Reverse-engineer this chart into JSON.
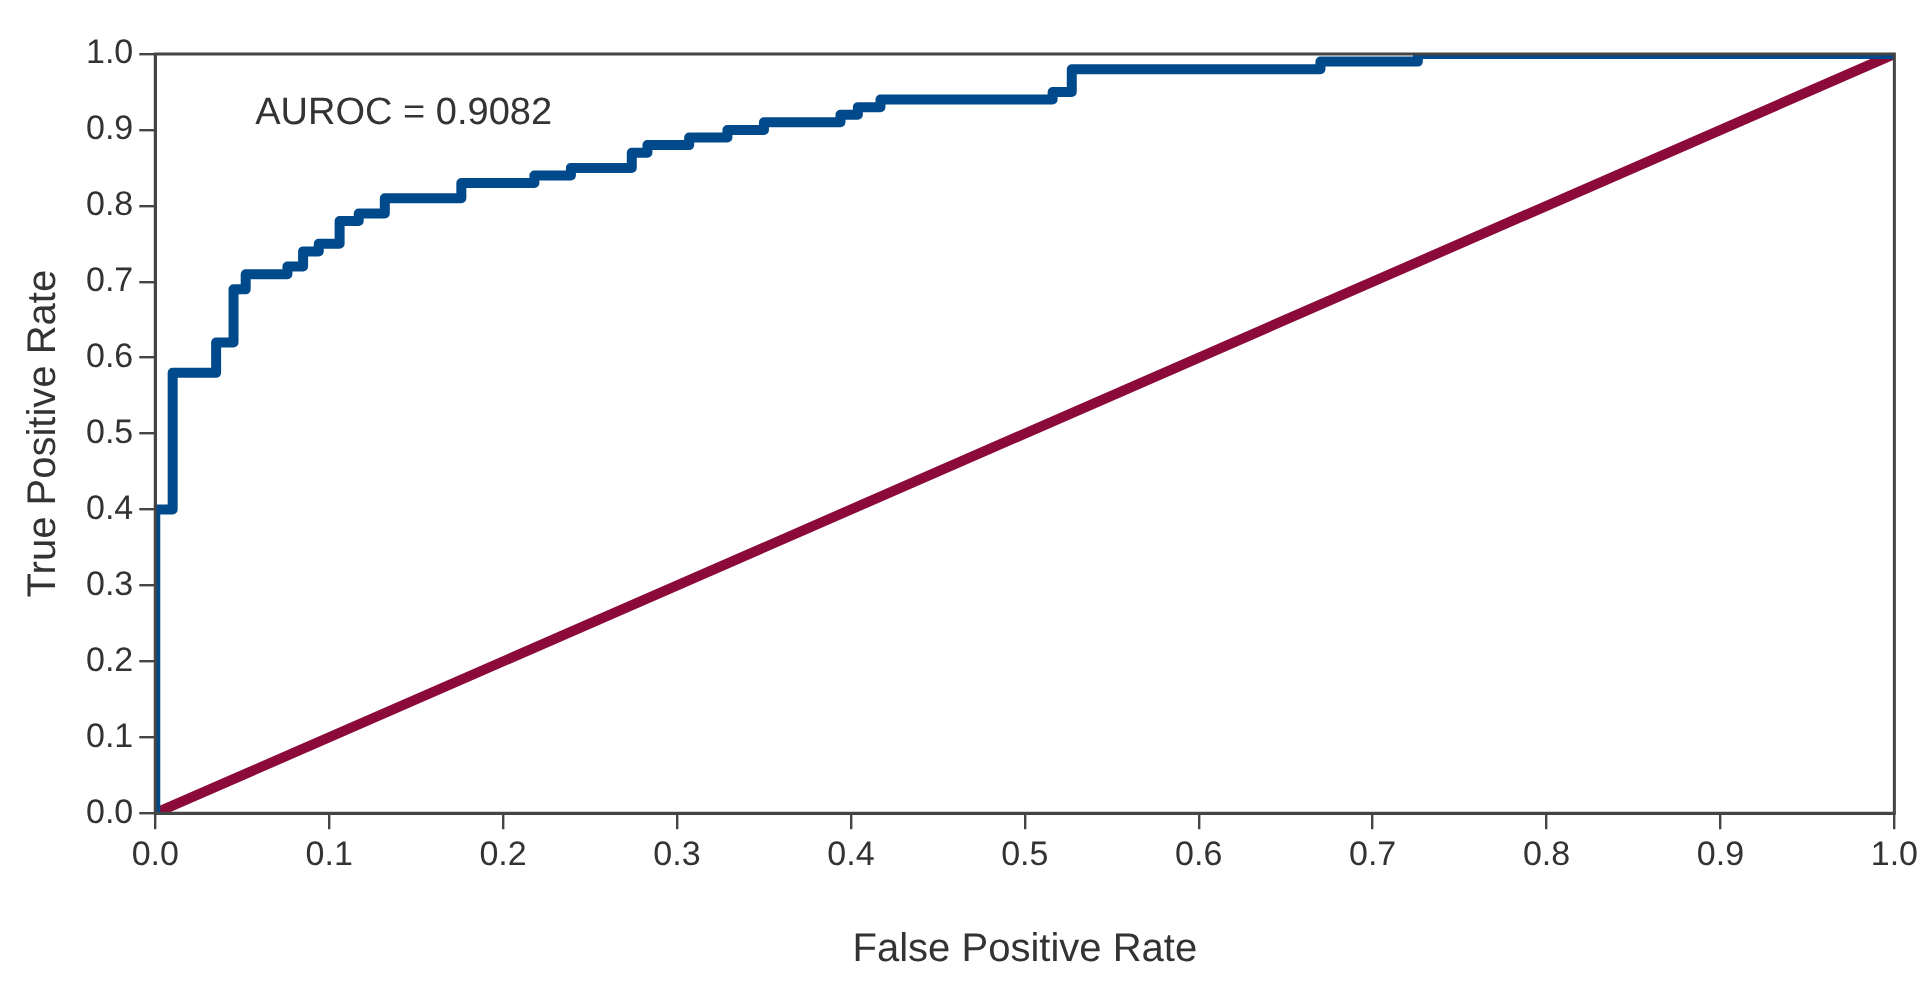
{
  "chart_data": {
    "type": "step",
    "xlabel": "False Positive Rate",
    "ylabel": "True Positive Rate",
    "annotations": [
      "AUROC = 0.9082"
    ],
    "xlim": [
      0,
      1
    ],
    "ylim": [
      0,
      1
    ],
    "xticks": [
      {
        "value": 0,
        "label": "0.0"
      },
      0.1,
      0.2,
      0.3,
      0.4,
      0.5,
      0.6,
      0.7,
      0.8,
      0.9,
      {
        "value": 1,
        "label": "1.0"
      }
    ],
    "yticks": [
      {
        "value": 0,
        "label": "0.0"
      },
      0.1,
      0.2,
      0.3,
      0.4,
      0.5,
      0.6,
      0.7,
      0.8,
      0.9,
      {
        "value": 1,
        "label": "1.0"
      }
    ],
    "grid": false,
    "legend": false,
    "marker": "none",
    "series": [
      {
        "color": "#004a8c",
        "x": [
          0,
          0,
          0.01,
          0.035,
          0.045,
          0.052,
          0.076,
          0.085,
          0.094,
          0.106,
          0.117,
          0.132,
          0.176,
          0.218,
          0.239,
          0.274,
          0.283,
          0.307,
          0.329,
          0.34,
          0.35,
          0.394,
          0.404,
          0.417,
          0.428,
          0.516,
          0.527,
          0.67,
          0.726,
          1
        ],
        "values": [
          0,
          0.4,
          0.58,
          0.62,
          0.69,
          0.71,
          0.72,
          0.74,
          0.75,
          0.78,
          0.79,
          0.81,
          0.83,
          0.84,
          0.85,
          0.87,
          0.88,
          0.89,
          0.9,
          0.9,
          0.91,
          0.92,
          0.93,
          0.94,
          0.94,
          0.95,
          0.98,
          0.99,
          1,
          1
        ]
      },
      {
        "type": "line",
        "color": "#8b0a3a",
        "x": [
          0,
          1
        ],
        "values": [
          0,
          1
        ]
      }
    ]
  }
}
